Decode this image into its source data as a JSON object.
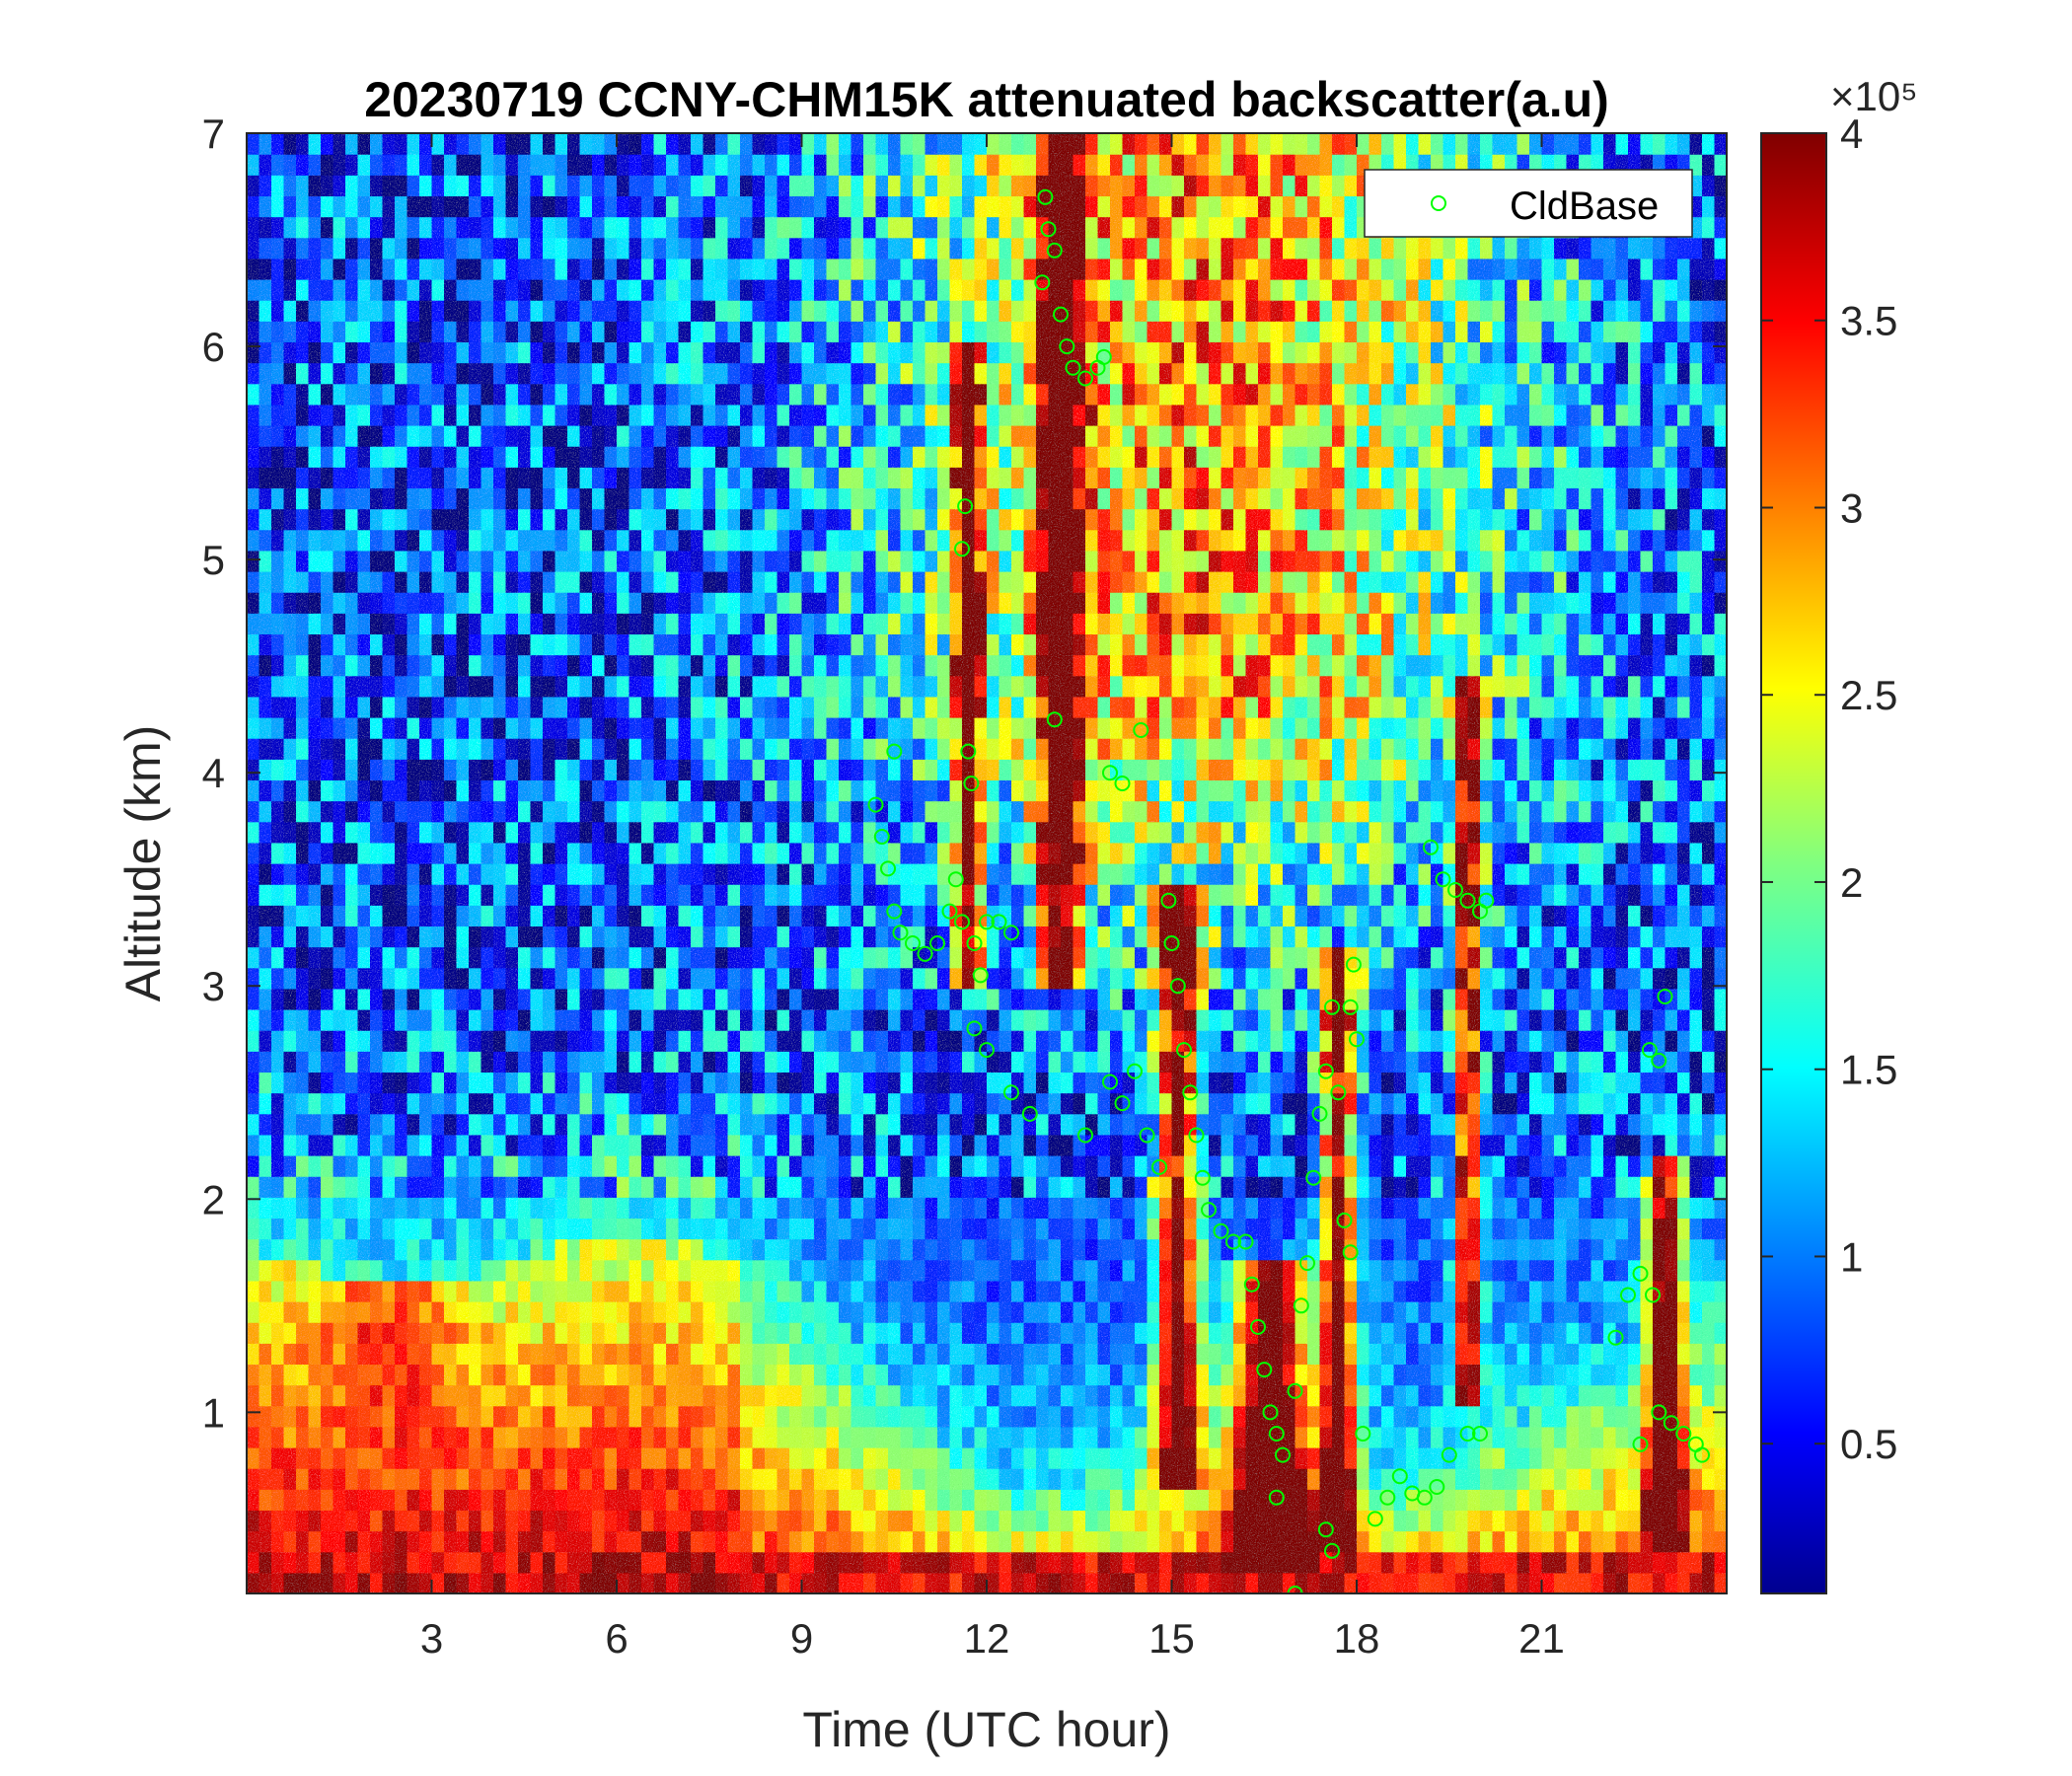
{
  "chart_data": {
    "type": "heatmap",
    "title": "20230719 CCNY-CHM15K attenuated backscatter(a.u)",
    "xlabel": "Time (UTC hour)",
    "ylabel": "Altitude (km)",
    "xlim": [
      0,
      24
    ],
    "ylim": [
      0.15,
      7
    ],
    "x_ticks": [
      3,
      6,
      9,
      12,
      15,
      18,
      21
    ],
    "y_ticks": [
      1,
      2,
      3,
      4,
      5,
      6,
      7
    ],
    "colormap": "jet",
    "colorbar": {
      "clim": [
        10000,
        400000
      ],
      "ticks": [
        0.5,
        1,
        1.5,
        2,
        2.5,
        3,
        3.5,
        4
      ],
      "tick_labels": [
        "0.5",
        "1",
        "1.5",
        "2",
        "2.5",
        "3",
        "3.5",
        "4"
      ],
      "exponent_label": "×10⁵"
    },
    "legend": {
      "entries": [
        "CldBase"
      ],
      "location": "top-right",
      "marker_color": "#00ff00"
    },
    "series": [
      {
        "name": "CldBase",
        "type": "scatter",
        "marker": "circle",
        "color": "#00ff00",
        "points": [
          [
            10.2,
            3.85
          ],
          [
            10.3,
            3.7
          ],
          [
            10.4,
            3.55
          ],
          [
            10.5,
            3.35
          ],
          [
            10.6,
            3.25
          ],
          [
            10.8,
            3.2
          ],
          [
            11.0,
            3.15
          ],
          [
            11.2,
            3.2
          ],
          [
            11.4,
            3.35
          ],
          [
            11.5,
            3.5
          ],
          [
            11.6,
            3.3
          ],
          [
            11.8,
            3.2
          ],
          [
            12.0,
            3.3
          ],
          [
            12.2,
            3.3
          ],
          [
            12.4,
            3.25
          ],
          [
            10.5,
            4.1
          ],
          [
            11.7,
            4.1
          ],
          [
            11.75,
            3.95
          ],
          [
            11.65,
            5.25
          ],
          [
            11.6,
            5.05
          ],
          [
            11.9,
            3.05
          ],
          [
            11.8,
            2.8
          ],
          [
            12.0,
            2.7
          ],
          [
            12.4,
            2.5
          ],
          [
            12.7,
            2.4
          ],
          [
            13.1,
            4.25
          ],
          [
            12.95,
            6.7
          ],
          [
            13.0,
            6.55
          ],
          [
            13.1,
            6.45
          ],
          [
            12.9,
            6.3
          ],
          [
            13.2,
            6.15
          ],
          [
            13.3,
            6.0
          ],
          [
            13.4,
            5.9
          ],
          [
            13.6,
            5.85
          ],
          [
            13.8,
            5.9
          ],
          [
            13.9,
            5.95
          ],
          [
            13.6,
            2.3
          ],
          [
            14.0,
            2.55
          ],
          [
            14.2,
            2.45
          ],
          [
            14.4,
            2.6
          ],
          [
            14.6,
            2.3
          ],
          [
            14.8,
            2.15
          ],
          [
            14.0,
            4.0
          ],
          [
            14.2,
            3.95
          ],
          [
            14.5,
            4.2
          ],
          [
            14.95,
            3.4
          ],
          [
            15.0,
            3.2
          ],
          [
            15.1,
            3.0
          ],
          [
            15.2,
            2.7
          ],
          [
            15.3,
            2.5
          ],
          [
            15.4,
            2.3
          ],
          [
            15.5,
            2.1
          ],
          [
            15.6,
            1.95
          ],
          [
            15.8,
            1.85
          ],
          [
            16.0,
            1.8
          ],
          [
            16.2,
            1.8
          ],
          [
            16.3,
            1.6
          ],
          [
            16.4,
            1.4
          ],
          [
            16.5,
            1.2
          ],
          [
            16.6,
            1.0
          ],
          [
            16.7,
            0.9
          ],
          [
            16.8,
            0.8
          ],
          [
            17.0,
            1.1
          ],
          [
            17.1,
            1.5
          ],
          [
            17.2,
            1.7
          ],
          [
            17.3,
            2.1
          ],
          [
            17.4,
            2.4
          ],
          [
            17.5,
            2.6
          ],
          [
            17.6,
            2.9
          ],
          [
            17.7,
            2.5
          ],
          [
            17.9,
            2.9
          ],
          [
            18.0,
            2.75
          ],
          [
            17.95,
            3.1
          ],
          [
            17.8,
            1.9
          ],
          [
            17.9,
            1.75
          ],
          [
            17.6,
            0.35
          ],
          [
            17.5,
            0.45
          ],
          [
            17.0,
            0.15
          ],
          [
            16.7,
            0.6
          ],
          [
            18.1,
            0.9
          ],
          [
            18.3,
            0.5
          ],
          [
            18.5,
            0.6
          ],
          [
            18.7,
            0.7
          ],
          [
            18.9,
            0.62
          ],
          [
            19.1,
            0.6
          ],
          [
            19.3,
            0.65
          ],
          [
            19.5,
            0.8
          ],
          [
            19.8,
            0.9
          ],
          [
            20.0,
            0.9
          ],
          [
            19.2,
            3.65
          ],
          [
            19.4,
            3.5
          ],
          [
            19.6,
            3.45
          ],
          [
            19.8,
            3.4
          ],
          [
            20.0,
            3.35
          ],
          [
            20.1,
            3.4
          ],
          [
            22.2,
            1.35
          ],
          [
            22.4,
            1.55
          ],
          [
            22.6,
            1.65
          ],
          [
            22.8,
            1.55
          ],
          [
            22.9,
            1.0
          ],
          [
            23.1,
            0.95
          ],
          [
            23.3,
            0.9
          ],
          [
            23.5,
            0.85
          ],
          [
            23.6,
            0.8
          ],
          [
            22.6,
            0.85
          ],
          [
            23.0,
            2.95
          ],
          [
            22.9,
            2.65
          ],
          [
            22.75,
            2.7
          ]
        ]
      }
    ]
  }
}
